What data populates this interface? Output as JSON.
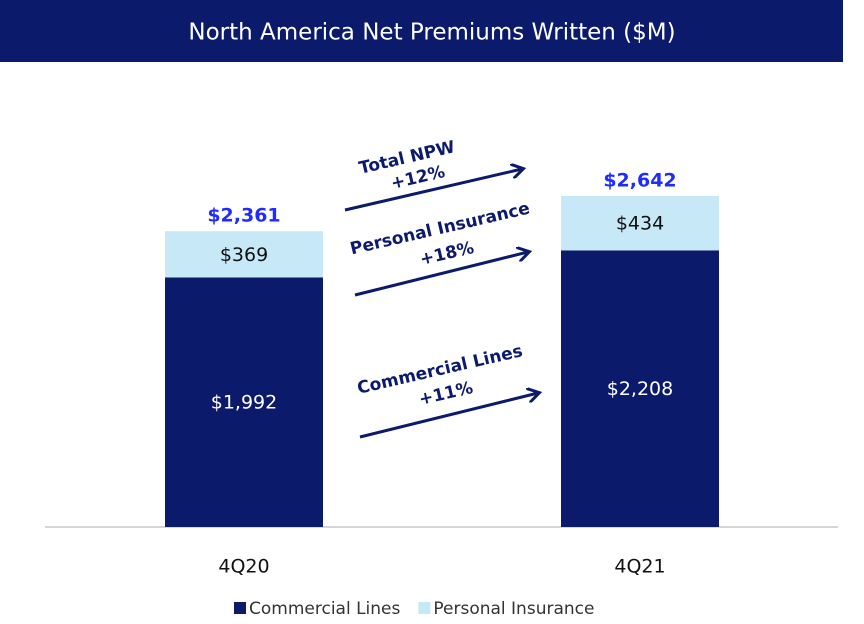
{
  "chart_data": {
    "type": "stacked_bar",
    "title": "North America Net Premiums Written ($M)",
    "categories": [
      "4Q20",
      "4Q21"
    ],
    "series": [
      {
        "name": "Commercial Lines",
        "color": "#0c1a6b",
        "values": [
          1992,
          2208
        ],
        "value_labels": [
          "$1,992",
          "$2,208"
        ]
      },
      {
        "name": "Personal Insurance",
        "color": "#c6e8f7",
        "values": [
          369,
          434
        ],
        "value_labels": [
          "$369",
          "$434"
        ]
      }
    ],
    "totals": [
      2361,
      2642
    ],
    "total_labels": [
      "$2,361",
      "$2,642"
    ],
    "total_color": "#1f2bff",
    "annotations": [
      {
        "text": "Total NPW",
        "change": "+12%"
      },
      {
        "text": "Personal Insurance",
        "change": "+18%"
      },
      {
        "text": "Commercial Lines",
        "change": "+11%"
      }
    ],
    "legend": "bottom"
  }
}
